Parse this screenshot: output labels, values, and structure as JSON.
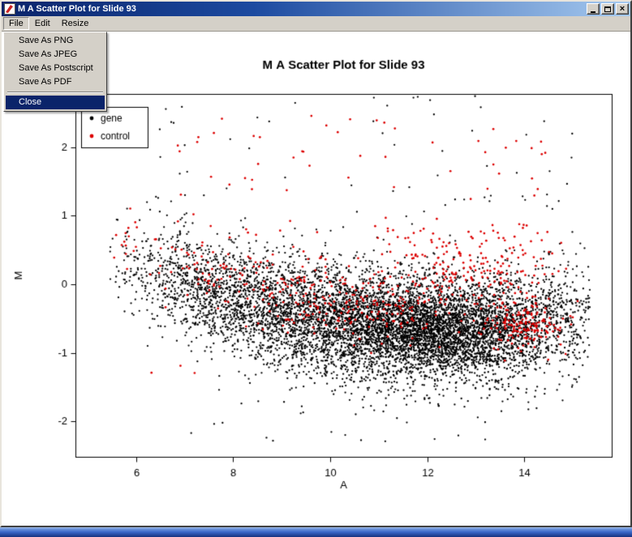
{
  "window": {
    "title": "M A Scatter Plot for Slide 93"
  },
  "titlebar_controls": {
    "minimize": "minimize",
    "maximize": "maximize",
    "close_glyph": "×"
  },
  "menubar": {
    "items": [
      {
        "label": "File"
      },
      {
        "label": "Edit"
      },
      {
        "label": "Resize"
      }
    ]
  },
  "file_menu": {
    "items": [
      "Save As PNG",
      "Save As JPEG",
      "Save As Postscript",
      "Save As PDF"
    ],
    "close_label": "Close"
  },
  "chart_data": {
    "type": "scatter",
    "title": "M A Scatter Plot for Slide 93",
    "xlabel": "A",
    "ylabel": "M",
    "xlim": [
      4.75,
      15.8
    ],
    "ylim": [
      -2.52,
      2.78
    ],
    "xticks": [
      6,
      8,
      10,
      12,
      14
    ],
    "yticks": [
      -2,
      -1,
      0,
      1,
      2
    ],
    "grid": false,
    "legend": {
      "position": "top-left",
      "entries": [
        {
          "label": "gene",
          "color": "#000000"
        },
        {
          "label": "control",
          "color": "#dd0000"
        }
      ]
    },
    "series_colors": {
      "gene": "#000000",
      "control": "#dd0000"
    },
    "point_radius": {
      "gene": 1.15,
      "control": 1.35
    },
    "trend": "Dense banana-shaped cloud of ~8000 gene points: M ~ +0.2 at A=6 dipping to ~ -0.65 near A=12 and rising slightly toward A=15; control points lie ~0.4 higher than genes across the band, with a dense red cluster near A=14, M=-0.6 and sparse red/black outliers up to M~2.7",
    "generation": {
      "seed": 20930,
      "curve": {
        "base": -0.65,
        "coef": 0.022,
        "center": 12.3
      },
      "clusters": [
        {
          "series": "gene",
          "n": 6000,
          "a": {
            "dist": "normal",
            "mean": 11.3,
            "sd": 2.2,
            "min": 5.45,
            "max": 15.35
          },
          "m": {
            "dist": "curve",
            "offset": 0,
            "sd": 0.42
          }
        },
        {
          "series": "gene",
          "n": 1300,
          "a": {
            "dist": "normal",
            "mean": 12.4,
            "sd": 1.05,
            "min": 8.5,
            "max": 15.2
          },
          "m": {
            "dist": "curve",
            "offset": -0.05,
            "sd": 0.27
          }
        },
        {
          "series": "gene",
          "n": 700,
          "a": {
            "dist": "normal",
            "mean": 7.6,
            "sd": 1.0,
            "min": 5.45,
            "max": 10.0
          },
          "m": {
            "dist": "curve",
            "offset": 0.02,
            "sd": 0.38
          }
        },
        {
          "series": "gene",
          "n": 55,
          "a": {
            "dist": "uniform",
            "min": 6.2,
            "max": 15.0
          },
          "m": {
            "dist": "uniform",
            "min": 1.05,
            "max": 2.75
          }
        },
        {
          "series": "gene",
          "n": 28,
          "a": {
            "dist": "uniform",
            "min": 7.0,
            "max": 14.6
          },
          "m": {
            "dist": "uniform",
            "min": -2.3,
            "max": -1.55
          }
        },
        {
          "series": "control",
          "n": 400,
          "a": {
            "dist": "normal",
            "mean": 10.2,
            "sd": 2.4,
            "min": 5.5,
            "max": 14.6
          },
          "m": {
            "dist": "curve",
            "offset": 0.38,
            "sd": 0.3
          }
        },
        {
          "series": "control",
          "n": 170,
          "a": {
            "dist": "normal",
            "mean": 12.9,
            "sd": 1.1,
            "min": 10.3,
            "max": 15.0
          },
          "m": {
            "dist": "curve",
            "offset": 1.02,
            "sd": 0.3
          }
        },
        {
          "series": "control",
          "n": 150,
          "a": {
            "dist": "normal",
            "mean": 14.05,
            "sd": 0.45,
            "min": 13.1,
            "max": 15.15
          },
          "m": {
            "dist": "normal",
            "mean": -0.62,
            "sd": 0.17
          }
        },
        {
          "series": "control",
          "n": 48,
          "a": {
            "dist": "uniform",
            "min": 6.6,
            "max": 14.6
          },
          "m": {
            "dist": "uniform",
            "min": 1.25,
            "max": 2.55
          }
        },
        {
          "series": "control",
          "n": 3,
          "a": {
            "dist": "uniform",
            "min": 6.0,
            "max": 7.5
          },
          "m": {
            "dist": "uniform",
            "min": -1.5,
            "max": -1.15
          }
        }
      ]
    }
  }
}
